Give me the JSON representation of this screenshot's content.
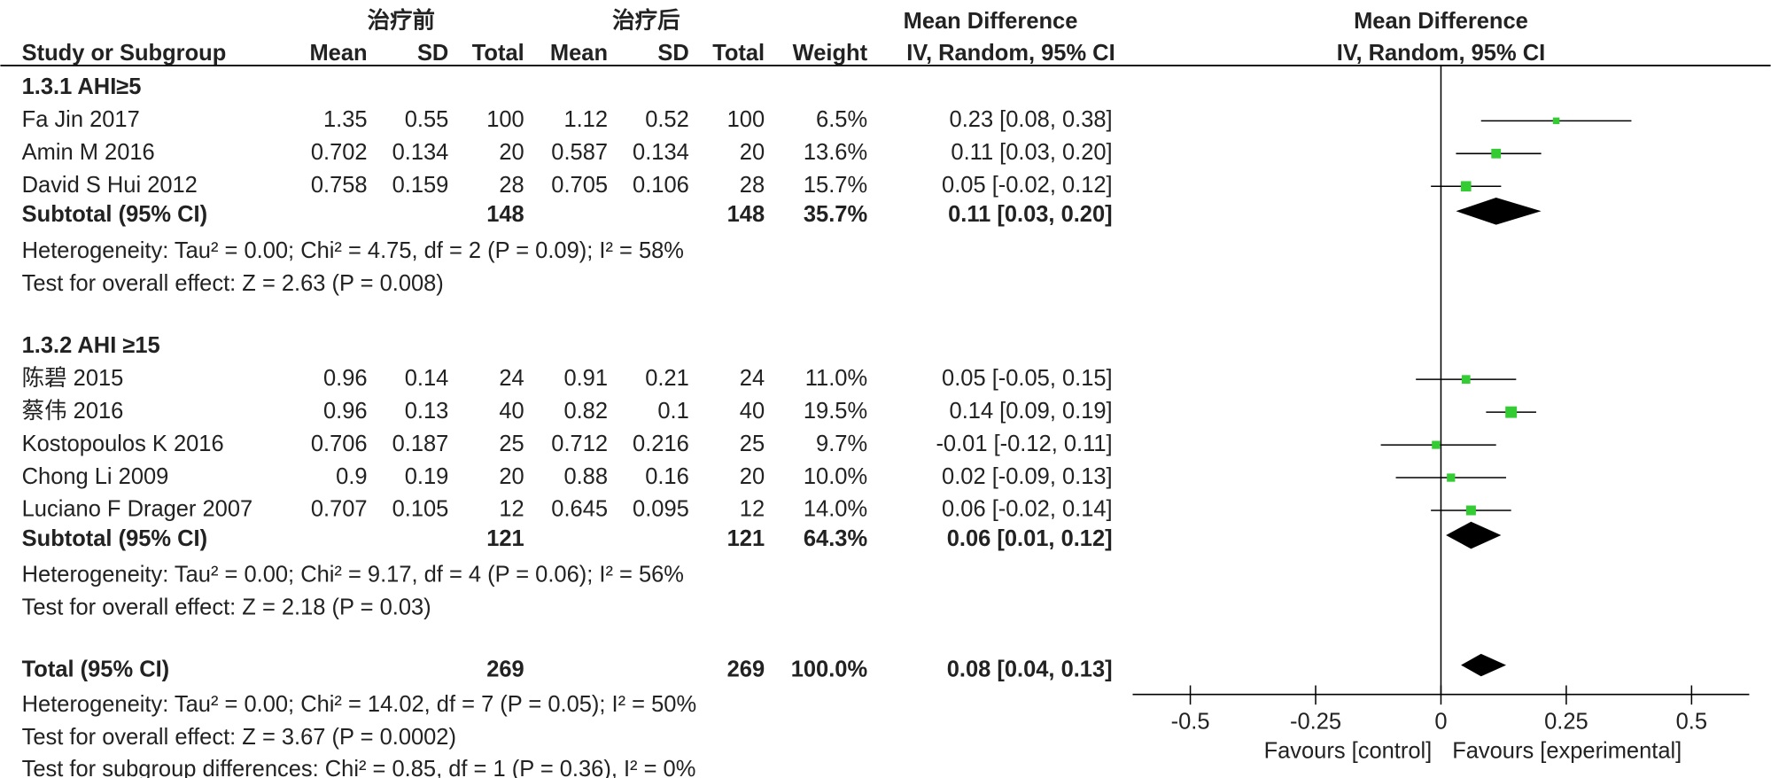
{
  "chart_data": {
    "type": "forest",
    "group_headers": [
      "治疗前",
      "治疗后"
    ],
    "columns": [
      "Study or Subgroup",
      "Mean",
      "SD",
      "Total",
      "Mean",
      "SD",
      "Total",
      "Weight"
    ],
    "effect_header": [
      "Mean Difference",
      "IV, Random, 95% CI"
    ],
    "subgroups": [
      {
        "title": "1.3.1 AHI≥5",
        "studies": [
          {
            "name": "Fa Jin 2017",
            "mean1": 1.35,
            "sd1": 0.55,
            "n1": 100,
            "mean2": 1.12,
            "sd2": 0.52,
            "n2": 100,
            "weight": 6.5,
            "weight_label": "6.5%",
            "md": 0.23,
            "ci": [
              0.08,
              0.38
            ],
            "ci_label": "0.23 [0.08, 0.38]"
          },
          {
            "name": "Amin M  2016",
            "mean1": 0.702,
            "sd1": 0.134,
            "n1": 20,
            "mean2": 0.587,
            "sd2": 0.134,
            "n2": 20,
            "weight": 13.6,
            "weight_label": "13.6%",
            "md": 0.11,
            "ci": [
              0.03,
              0.2
            ],
            "ci_label": "0.11 [0.03, 0.20]"
          },
          {
            "name": "David S Hui 2012",
            "mean1": 0.758,
            "sd1": 0.159,
            "n1": 28,
            "mean2": 0.705,
            "sd2": 0.106,
            "n2": 28,
            "weight": 15.7,
            "weight_label": "15.7%",
            "md": 0.05,
            "ci": [
              -0.02,
              0.12
            ],
            "ci_label": "0.05 [-0.02, 0.12]"
          }
        ],
        "subtotal": {
          "label": "Subtotal (95% CI)",
          "n1": 148,
          "n2": 148,
          "weight": 35.7,
          "weight_label": "35.7%",
          "md": 0.11,
          "ci": [
            0.03,
            0.2
          ],
          "ci_label": "0.11 [0.03, 0.20]"
        },
        "heterogeneity": "Heterogeneity: Tau² = 0.00; Chi² = 4.75, df = 2 (P = 0.09); I² = 58%",
        "overall_effect": "Test for overall effect: Z = 2.63 (P = 0.008)"
      },
      {
        "title": "1.3.2 AHI ≥15",
        "studies": [
          {
            "name": "陈碧 2015",
            "mean1": 0.96,
            "sd1": 0.14,
            "n1": 24,
            "mean2": 0.91,
            "sd2": 0.21,
            "n2": 24,
            "weight": 11.0,
            "weight_label": "11.0%",
            "md": 0.05,
            "ci": [
              -0.05,
              0.15
            ],
            "ci_label": "0.05 [-0.05, 0.15]"
          },
          {
            "name": "蔡伟 2016",
            "mean1": 0.96,
            "sd1": 0.13,
            "n1": 40,
            "mean2": 0.82,
            "sd2": 0.1,
            "n2": 40,
            "weight": 19.5,
            "weight_label": "19.5%",
            "md": 0.14,
            "ci": [
              0.09,
              0.19
            ],
            "ci_label": "0.14 [0.09, 0.19]"
          },
          {
            "name": "Kostopoulos K 2016",
            "mean1": 0.706,
            "sd1": 0.187,
            "n1": 25,
            "mean2": 0.712,
            "sd2": 0.216,
            "n2": 25,
            "weight": 9.7,
            "weight_label": "9.7%",
            "md": -0.01,
            "ci": [
              -0.12,
              0.11
            ],
            "ci_label": "-0.01 [-0.12, 0.11]"
          },
          {
            "name": "Chong Li 2009",
            "mean1": 0.9,
            "sd1": 0.19,
            "n1": 20,
            "mean2": 0.88,
            "sd2": 0.16,
            "n2": 20,
            "weight": 10.0,
            "weight_label": "10.0%",
            "md": 0.02,
            "ci": [
              -0.09,
              0.13
            ],
            "ci_label": "0.02 [-0.09, 0.13]"
          },
          {
            "name": "Luciano F Drager 2007",
            "mean1": 0.707,
            "sd1": 0.105,
            "n1": 12,
            "mean2": 0.645,
            "sd2": 0.095,
            "n2": 12,
            "weight": 14.0,
            "weight_label": "14.0%",
            "md": 0.06,
            "ci": [
              -0.02,
              0.14
            ],
            "ci_label": "0.06 [-0.02, 0.14]"
          }
        ],
        "subtotal": {
          "label": "Subtotal (95% CI)",
          "n1": 121,
          "n2": 121,
          "weight": 64.3,
          "weight_label": "64.3%",
          "md": 0.06,
          "ci": [
            0.01,
            0.12
          ],
          "ci_label": "0.06 [0.01, 0.12]"
        },
        "heterogeneity": "Heterogeneity: Tau² = 0.00; Chi² = 9.17, df = 4 (P = 0.06); I² = 56%",
        "overall_effect": "Test for overall effect: Z = 2.18 (P = 0.03)"
      }
    ],
    "total": {
      "label": "Total (95% CI)",
      "n1": 269,
      "n2": 269,
      "weight": 100,
      "weight_label": "100.0%",
      "md": 0.08,
      "ci": [
        0.04,
        0.13
      ],
      "ci_label": "0.08 [0.04, 0.13]",
      "heterogeneity": "Heterogeneity: Tau² = 0.00; Chi² = 14.02, df = 7 (P = 0.05); I² = 50%",
      "overall_effect": "Test for overall effect: Z = 3.67 (P = 0.0002)",
      "subgroup_differences": "Test for subgroup differences: Chi² = 0.85, df = 1 (P = 0.36), I² = 0%"
    },
    "xlim": [
      -0.615,
      0.615
    ],
    "xticks": [
      -0.5,
      -0.25,
      0,
      0.25,
      0.5
    ],
    "favours": [
      "Favours [control]",
      "Favours [experimental]"
    ],
    "marker_color": "#33cc33",
    "diamond_color": "#000000"
  }
}
